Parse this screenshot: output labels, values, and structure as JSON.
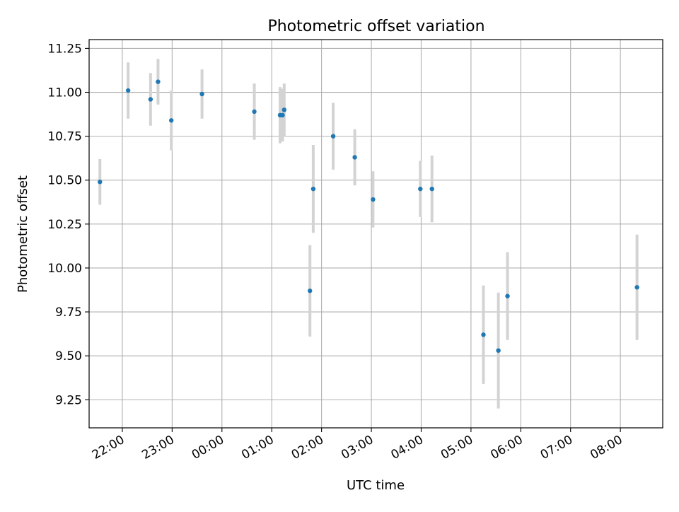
{
  "chart_data": {
    "type": "scatter",
    "title": "Photometric offset variation",
    "xlabel": "UTC time",
    "ylabel": "Photometric offset",
    "x_axis_kind": "time",
    "x_tick_labels": [
      "22:00",
      "23:00",
      "00:00",
      "01:00",
      "02:00",
      "03:00",
      "04:00",
      "05:00",
      "06:00",
      "07:00",
      "08:00"
    ],
    "y_ticks": [
      9.25,
      9.5,
      9.75,
      10.0,
      10.25,
      10.5,
      10.75,
      11.0,
      11.25
    ],
    "y_tick_labels": [
      "9.25",
      "9.50",
      "9.75",
      "10.00",
      "10.25",
      "10.50",
      "10.75",
      "11.00",
      "11.25"
    ],
    "xlim": [
      "21:20",
      "08:51"
    ],
    "ylim": [
      9.09,
      11.3
    ],
    "grid": true,
    "point_color": "#1f77b4",
    "errorbar_color": "#d3d3d3",
    "series": [
      {
        "points": [
          {
            "x": "21:33",
            "y": 10.49,
            "err": 0.13
          },
          {
            "x": "22:07",
            "y": 11.01,
            "err": 0.16
          },
          {
            "x": "22:34",
            "y": 10.96,
            "err": 0.15
          },
          {
            "x": "22:43",
            "y": 11.06,
            "err": 0.13
          },
          {
            "x": "22:59",
            "y": 10.84,
            "err": 0.17
          },
          {
            "x": "23:36",
            "y": 10.99,
            "err": 0.14
          },
          {
            "x": "00:39",
            "y": 10.89,
            "err": 0.16
          },
          {
            "x": "01:10",
            "y": 10.87,
            "err": 0.16
          },
          {
            "x": "01:13",
            "y": 10.87,
            "err": 0.15
          },
          {
            "x": "01:15",
            "y": 10.9,
            "err": 0.15
          },
          {
            "x": "01:46",
            "y": 9.87,
            "err": 0.26
          },
          {
            "x": "01:50",
            "y": 10.45,
            "err": 0.25
          },
          {
            "x": "02:14",
            "y": 10.75,
            "err": 0.19
          },
          {
            "x": "02:40",
            "y": 10.63,
            "err": 0.16
          },
          {
            "x": "03:02",
            "y": 10.39,
            "err": 0.16
          },
          {
            "x": "03:59",
            "y": 10.45,
            "err": 0.16
          },
          {
            "x": "04:13",
            "y": 10.45,
            "err": 0.19
          },
          {
            "x": "05:15",
            "y": 9.62,
            "err": 0.28
          },
          {
            "x": "05:33",
            "y": 9.53,
            "err": 0.33
          },
          {
            "x": "05:44",
            "y": 9.84,
            "err": 0.25
          },
          {
            "x": "08:20",
            "y": 9.89,
            "err": 0.3
          }
        ]
      }
    ]
  }
}
